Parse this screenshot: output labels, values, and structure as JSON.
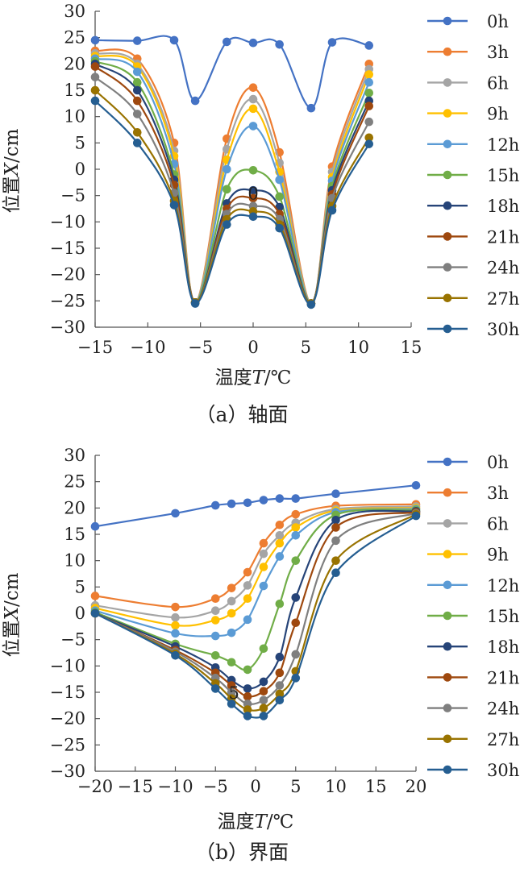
{
  "chart_data": [
    {
      "type": "line",
      "caption": "（a）轴面",
      "xlabel_prefix": "温度",
      "xlabel_var": "T",
      "xlabel_unit": "/℃",
      "ylabel_prefix": "位置",
      "ylabel_var": "X",
      "ylabel_unit": "/cm",
      "xlim": [
        -15,
        15
      ],
      "ylim": [
        -30,
        30
      ],
      "xticks": [
        "−15",
        "−10",
        "−5",
        "0",
        "5",
        "10",
        "15"
      ],
      "yticks": [
        "30",
        "25",
        "20",
        "15",
        "10",
        "5",
        "0",
        "−5",
        "−10",
        "−15",
        "−20",
        "−25",
        "−30"
      ],
      "x": [
        -15,
        -11,
        -7.5,
        -5.5,
        -2.5,
        0,
        2.5,
        5.5,
        7.5,
        11
      ],
      "series": [
        {
          "name": "0h",
          "color": "#4472C4",
          "values": [
            24.5,
            24.4,
            24.5,
            13,
            24.2,
            24,
            23.7,
            11.6,
            24.1,
            23.5
          ]
        },
        {
          "name": "3h",
          "color": "#ED7D31",
          "values": [
            22.5,
            21,
            5,
            -25.3,
            5.8,
            15.5,
            3.2,
            -25.5,
            0.5,
            20
          ]
        },
        {
          "name": "6h",
          "color": "#A5A5A5",
          "values": [
            22,
            20,
            3.5,
            -25.3,
            3.8,
            13.3,
            1.2,
            -25.5,
            -0.5,
            19
          ]
        },
        {
          "name": "9h",
          "color": "#FFC000",
          "values": [
            21.5,
            19.5,
            2.5,
            -25.3,
            1.8,
            11.5,
            -0.5,
            -25.5,
            -1.5,
            18
          ]
        },
        {
          "name": "12h",
          "color": "#5B9BD5",
          "values": [
            21,
            18.5,
            1,
            -25.3,
            0,
            8.2,
            -2,
            -25.5,
            -2.2,
            16.5
          ]
        },
        {
          "name": "15h",
          "color": "#70AD47",
          "values": [
            20.5,
            16.5,
            -1,
            -25.3,
            -3.8,
            -0.2,
            -5.2,
            -25.5,
            -3.2,
            14.5
          ]
        },
        {
          "name": "18h",
          "color": "#264478",
          "values": [
            20,
            15,
            -2,
            -25.3,
            -6.5,
            -4,
            -7.2,
            -25.5,
            -4,
            13
          ]
        },
        {
          "name": "21h",
          "color": "#9E480E",
          "values": [
            19.5,
            13,
            -3,
            -25.3,
            -7.5,
            -5.5,
            -8.5,
            -25.5,
            -4.8,
            12
          ]
        },
        {
          "name": "24h",
          "color": "#7F7F7F",
          "values": [
            17.5,
            10.5,
            -4.5,
            -25.3,
            -8.5,
            -7,
            -9.5,
            -25.5,
            -5.5,
            9
          ]
        },
        {
          "name": "27h",
          "color": "#997300",
          "values": [
            15,
            7,
            -6,
            -25.3,
            -9.5,
            -8,
            -10.5,
            -25.5,
            -7,
            6
          ]
        },
        {
          "name": "30h",
          "color": "#255E91",
          "values": [
            13,
            5,
            -6.8,
            -25.5,
            -10.5,
            -9,
            -11.2,
            -25.7,
            -7.8,
            4.8
          ]
        }
      ],
      "inline_label": "0"
    },
    {
      "type": "line",
      "caption": "（b）界面",
      "xlabel_prefix": "温度",
      "xlabel_var": "T",
      "xlabel_unit": "/℃",
      "ylabel_prefix": "位置",
      "ylabel_var": "X",
      "ylabel_unit": "/cm",
      "xlim": [
        -20,
        20
      ],
      "ylim": [
        -30,
        30
      ],
      "xticks": [
        "−20",
        "−15",
        "−10",
        "−5",
        "0",
        "5",
        "10",
        "15",
        "20"
      ],
      "yticks": [
        "30",
        "25",
        "20",
        "15",
        "10",
        "5",
        "0",
        "−5",
        "−10",
        "−15",
        "−20",
        "−25",
        "−30"
      ],
      "x": [
        -20,
        -10,
        -5,
        -3,
        -1,
        1,
        3,
        5,
        10,
        20
      ],
      "series": [
        {
          "name": "0h",
          "color": "#4472C4",
          "values": [
            16.5,
            19,
            20.5,
            20.8,
            21,
            21.5,
            21.8,
            21.8,
            22.7,
            24.3
          ]
        },
        {
          "name": "3h",
          "color": "#ED7D31",
          "values": [
            3.3,
            1.2,
            2.8,
            4.8,
            7.8,
            13.3,
            16.8,
            18.8,
            20.4,
            20.7
          ]
        },
        {
          "name": "6h",
          "color": "#A5A5A5",
          "values": [
            1.5,
            -0.8,
            0.5,
            2.3,
            5.3,
            11.3,
            14.8,
            17.2,
            19.8,
            20.3
          ]
        },
        {
          "name": "9h",
          "color": "#FFC000",
          "values": [
            1,
            -2.3,
            -1.3,
            0,
            2.8,
            8.8,
            13.3,
            16.3,
            19.5,
            20
          ]
        },
        {
          "name": "12h",
          "color": "#5B9BD5",
          "values": [
            0.5,
            -3.8,
            -4.3,
            -3.7,
            -1.2,
            5.2,
            10.8,
            14.8,
            19.2,
            19.8
          ]
        },
        {
          "name": "15h",
          "color": "#70AD47",
          "values": [
            0.2,
            -5.8,
            -8,
            -9.3,
            -10.7,
            -6.7,
            1.8,
            10,
            18.7,
            19.6
          ]
        },
        {
          "name": "18h",
          "color": "#264478",
          "values": [
            0,
            -6.3,
            -10.3,
            -12.7,
            -14.3,
            -13,
            -8.3,
            3,
            17.7,
            19.4
          ]
        },
        {
          "name": "21h",
          "color": "#9E480E",
          "values": [
            0,
            -7,
            -11.3,
            -13.7,
            -15.8,
            -14.8,
            -11.3,
            -1.8,
            16.3,
            19.2
          ]
        },
        {
          "name": "24h",
          "color": "#7F7F7F",
          "values": [
            0,
            -7.3,
            -12.3,
            -15,
            -17.2,
            -16.5,
            -13.7,
            -7.8,
            13.8,
            19
          ]
        },
        {
          "name": "27h",
          "color": "#997300",
          "values": [
            0,
            -7.7,
            -13.3,
            -16.2,
            -18.3,
            -18,
            -15.3,
            -11,
            10,
            18.8
          ]
        },
        {
          "name": "30h",
          "color": "#255E91",
          "values": [
            0,
            -8,
            -14.3,
            -17.2,
            -19.5,
            -19.5,
            -16.5,
            -12.3,
            7.7,
            18.5
          ]
        }
      ],
      "inline_label": "5"
    }
  ]
}
